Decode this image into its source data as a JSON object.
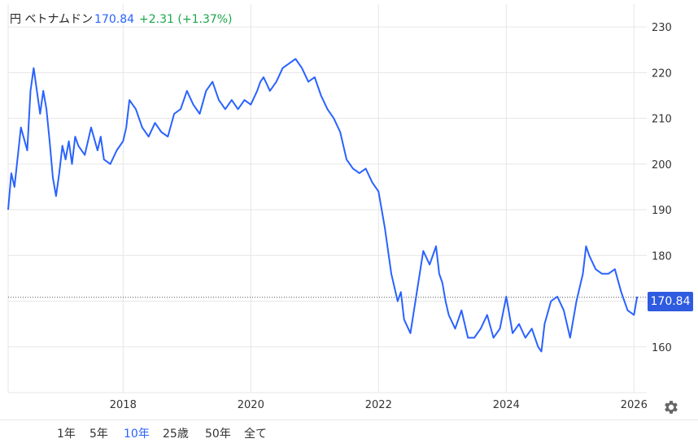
{
  "header": {
    "pair": "円 ベトナムドン",
    "price": "170.84",
    "change": "+2.31",
    "change_pct": "(+1.37%)"
  },
  "current_price_tag": "170.84",
  "range_buttons": [
    "1年",
    "5年",
    "10年",
    "25歳",
    "50年",
    "全て"
  ],
  "active_range": "10年",
  "colors": {
    "line": "#2962ff",
    "tag": "#2f5be0",
    "up": "#1aa64b",
    "grid": "#e6e6e6"
  },
  "icons": {
    "settings": "gear-icon"
  },
  "chart_data": {
    "type": "line",
    "title": "",
    "xlabel": "",
    "ylabel": "",
    "ylim": [
      150,
      235
    ],
    "xlim": [
      2016.2,
      2026.2
    ],
    "y_ticks": [
      160,
      170,
      180,
      190,
      200,
      210,
      220,
      230
    ],
    "y_tick_labels": [
      "160",
      "170",
      "180",
      "190",
      "200",
      "210",
      "220",
      "230"
    ],
    "x_ticks": [
      2018,
      2020,
      2022,
      2024,
      2026
    ],
    "x_tick_labels": [
      "2018",
      "2020",
      "2022",
      "2024",
      "2026"
    ],
    "grid": true,
    "y_axis_side": "right",
    "current_value_line": 170.84,
    "series": [
      {
        "x": [
          2016.2,
          2016.25,
          2016.3,
          2016.4,
          2016.5,
          2016.55,
          2016.6,
          2016.7,
          2016.75,
          2016.8,
          2016.85,
          2016.9,
          2016.95,
          2017.0,
          2017.05,
          2017.1,
          2017.15,
          2017.2,
          2017.25,
          2017.3,
          2017.4,
          2017.5,
          2017.6,
          2017.65,
          2017.7,
          2017.8,
          2017.9,
          2018.0,
          2018.05,
          2018.1,
          2018.2,
          2018.3,
          2018.4,
          2018.5,
          2018.6,
          2018.7,
          2018.8,
          2018.9,
          2019.0,
          2019.1,
          2019.2,
          2019.3,
          2019.4,
          2019.5,
          2019.6,
          2019.7,
          2019.8,
          2019.9,
          2020.0,
          2020.1,
          2020.15,
          2020.2,
          2020.3,
          2020.4,
          2020.5,
          2020.6,
          2020.7,
          2020.8,
          2020.9,
          2021.0,
          2021.1,
          2021.2,
          2021.3,
          2021.4,
          2021.5,
          2021.6,
          2021.7,
          2021.8,
          2021.9,
          2022.0,
          2022.1,
          2022.2,
          2022.3,
          2022.35,
          2022.4,
          2022.5,
          2022.6,
          2022.7,
          2022.8,
          2022.9,
          2022.95,
          2023.0,
          2023.05,
          2023.1,
          2023.2,
          2023.3,
          2023.4,
          2023.5,
          2023.6,
          2023.7,
          2023.8,
          2023.9,
          2024.0,
          2024.05,
          2024.1,
          2024.2,
          2024.3,
          2024.4,
          2024.5,
          2024.55,
          2024.6,
          2024.7,
          2024.8,
          2024.9,
          2025.0,
          2025.1,
          2025.2,
          2025.25,
          2025.3,
          2025.4,
          2025.5,
          2025.6,
          2025.7,
          2025.8,
          2025.9,
          2026.0,
          2026.05
        ],
        "y": [
          190,
          198,
          195,
          208,
          203,
          216,
          221,
          211,
          216,
          212,
          205,
          197,
          193,
          198,
          204,
          201,
          205,
          200,
          206,
          204,
          202,
          208,
          203,
          206,
          201,
          200,
          203,
          205,
          208,
          214,
          212,
          208,
          206,
          209,
          207,
          206,
          211,
          212,
          216,
          213,
          211,
          216,
          218,
          214,
          212,
          214,
          212,
          214,
          213,
          216,
          218,
          219,
          216,
          218,
          221,
          222,
          223,
          221,
          218,
          219,
          215,
          212,
          210,
          207,
          201,
          199,
          198,
          199,
          196,
          194,
          186,
          176,
          170,
          172,
          166,
          163,
          172,
          181,
          178,
          182,
          176,
          174,
          170,
          167,
          164,
          168,
          162,
          162,
          164,
          167,
          162,
          164,
          171,
          167,
          163,
          165,
          162,
          164,
          160,
          159,
          165,
          170,
          171,
          168,
          162,
          170,
          176,
          182,
          180,
          177,
          176,
          176,
          177,
          172,
          168,
          167,
          171
        ]
      }
    ]
  }
}
